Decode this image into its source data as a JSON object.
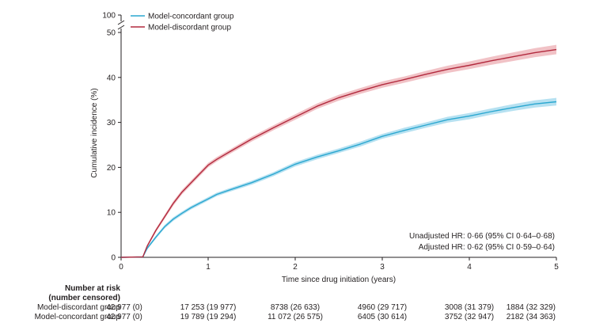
{
  "chart_data": {
    "type": "line",
    "title": "",
    "xlabel": "Time since drug initiation (years)",
    "ylabel": "Cumulative incidence (%)",
    "xlim": [
      0,
      5
    ],
    "ylim": [
      0,
      50
    ],
    "x_ticks": [
      "0",
      "1",
      "2",
      "3",
      "4",
      "5"
    ],
    "y_ticks": [
      "0",
      "10",
      "20",
      "30",
      "40",
      "50"
    ],
    "y_break_label": "100",
    "grid": false,
    "legend_position": "top-left",
    "series": [
      {
        "name": "Model-concordant group",
        "color": "#2aa7d0",
        "band_color": "#a9dcee",
        "x": [
          0,
          0.25,
          0.3,
          0.4,
          0.5,
          0.6,
          0.7,
          0.8,
          0.9,
          1.0,
          1.1,
          1.25,
          1.5,
          1.75,
          2.0,
          2.25,
          2.5,
          2.75,
          3.0,
          3.25,
          3.5,
          3.75,
          4.0,
          4.25,
          4.5,
          4.75,
          5.0
        ],
        "y": [
          0,
          0.1,
          2.0,
          4.5,
          6.8,
          8.5,
          9.8,
          11.0,
          12.0,
          13.0,
          14.0,
          15.0,
          16.6,
          18.5,
          20.7,
          22.3,
          23.7,
          25.2,
          26.9,
          28.2,
          29.4,
          30.6,
          31.4,
          32.4,
          33.3,
          34.1,
          34.6
        ],
        "ci_halfwidth": [
          0,
          0.1,
          0.3,
          0.35,
          0.4,
          0.4,
          0.4,
          0.4,
          0.4,
          0.4,
          0.4,
          0.4,
          0.45,
          0.45,
          0.5,
          0.5,
          0.5,
          0.55,
          0.55,
          0.6,
          0.6,
          0.65,
          0.7,
          0.7,
          0.75,
          0.8,
          0.85
        ]
      },
      {
        "name": "Model-discordant group",
        "color": "#b22a3e",
        "band_color": "#efb7bc",
        "x": [
          0,
          0.25,
          0.3,
          0.4,
          0.5,
          0.6,
          0.7,
          0.8,
          0.9,
          1.0,
          1.1,
          1.25,
          1.5,
          1.75,
          2.0,
          2.25,
          2.5,
          2.75,
          3.0,
          3.25,
          3.5,
          3.75,
          4.0,
          4.25,
          4.5,
          4.75,
          5.0
        ],
        "y": [
          0,
          0.1,
          2.5,
          6.0,
          9.0,
          12.0,
          14.5,
          16.5,
          18.5,
          20.5,
          21.8,
          23.5,
          26.3,
          28.8,
          31.2,
          33.6,
          35.5,
          37.0,
          38.4,
          39.5,
          40.7,
          41.8,
          42.7,
          43.7,
          44.6,
          45.5,
          46.2
        ],
        "ci_halfwidth": [
          0,
          0.1,
          0.35,
          0.4,
          0.45,
          0.5,
          0.5,
          0.5,
          0.5,
          0.5,
          0.5,
          0.5,
          0.55,
          0.55,
          0.6,
          0.6,
          0.65,
          0.65,
          0.7,
          0.7,
          0.75,
          0.8,
          0.85,
          0.9,
          0.95,
          1.0,
          1.05
        ]
      }
    ],
    "annotations": [
      "Unadjusted HR: 0·66 (95% CI 0·64–0·68)",
      "Adjusted HR: 0·62 (95% CI 0·59–0·64)"
    ],
    "risk_table": {
      "header_line1": "Number at risk",
      "header_line2": "(number censored)",
      "rows": [
        {
          "label": "Model-discordant group",
          "cells": [
            "42 977 (0)",
            "17 253 (19 977)",
            "8738 (26 633)",
            "4960 (29 717)",
            "3008 (31 379)",
            "1884 (32 329)"
          ]
        },
        {
          "label": "Model-concordant group",
          "cells": [
            "42 977 (0)",
            "19 789 (19 294)",
            "11 072 (26 575)",
            "6405 (30 614)",
            "3752 (32 947)",
            "2182 (34 363)"
          ]
        }
      ]
    }
  }
}
